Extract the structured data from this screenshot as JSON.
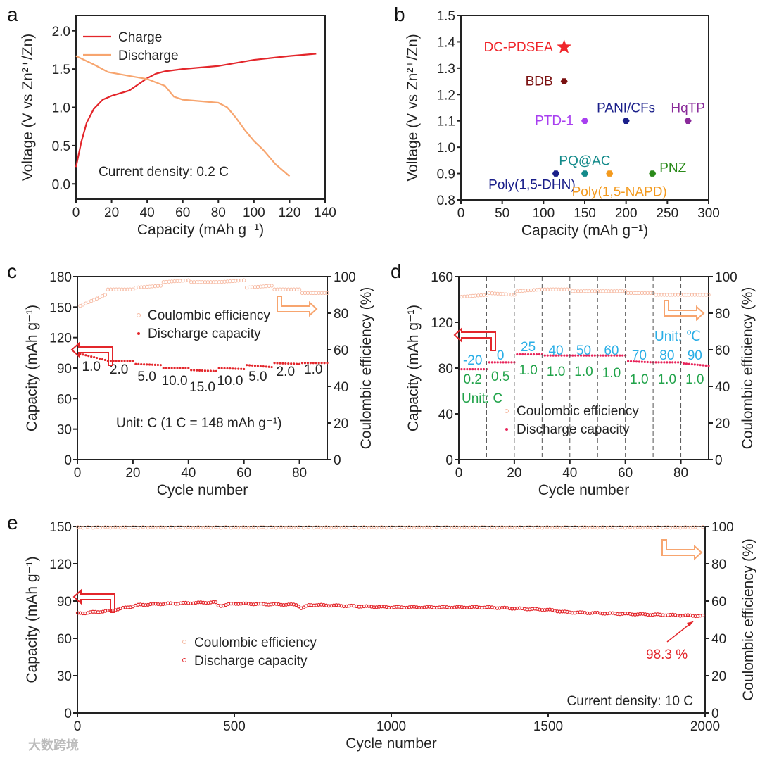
{
  "colors": {
    "charge": "#e3262b",
    "discharge": "#f7a56f",
    "cap": "#e3262b",
    "cap_d": "#e8245a",
    "ce": "#f6b8a0",
    "blue": "#29aee6",
    "green": "#21a34a"
  },
  "watermark": "大数跨境",
  "chart_data": [
    {
      "panel": "a",
      "type": "line",
      "xlabel": "Capacity (mAh g⁻¹)",
      "ylabel": "Voltage (V vs Zn²⁺/Zn)",
      "xlim": [
        0,
        140
      ],
      "ylim": [
        -0.2,
        2.2
      ],
      "xticks": [
        0,
        20,
        40,
        60,
        80,
        100,
        120,
        140
      ],
      "yticks": [
        0.0,
        0.5,
        1.0,
        1.5,
        2.0
      ],
      "annotation": "Current density: 0.2 C",
      "series": [
        {
          "name": "Charge",
          "color": "#e3262b",
          "points": [
            [
              0,
              0.22
            ],
            [
              3,
              0.55
            ],
            [
              6,
              0.8
            ],
            [
              10,
              0.98
            ],
            [
              15,
              1.1
            ],
            [
              20,
              1.15
            ],
            [
              30,
              1.22
            ],
            [
              35,
              1.3
            ],
            [
              40,
              1.38
            ],
            [
              45,
              1.44
            ],
            [
              50,
              1.47
            ],
            [
              60,
              1.5
            ],
            [
              80,
              1.54
            ],
            [
              100,
              1.62
            ],
            [
              120,
              1.67
            ],
            [
              135,
              1.7
            ]
          ]
        },
        {
          "name": "Discharge",
          "color": "#f7a56f",
          "points": [
            [
              0,
              1.67
            ],
            [
              10,
              1.56
            ],
            [
              18,
              1.46
            ],
            [
              30,
              1.41
            ],
            [
              40,
              1.37
            ],
            [
              50,
              1.28
            ],
            [
              55,
              1.14
            ],
            [
              60,
              1.1
            ],
            [
              80,
              1.06
            ],
            [
              85,
              1.0
            ],
            [
              90,
              0.86
            ],
            [
              95,
              0.7
            ],
            [
              100,
              0.56
            ],
            [
              105,
              0.45
            ],
            [
              112,
              0.26
            ],
            [
              120,
              0.1
            ]
          ]
        }
      ]
    },
    {
      "panel": "b",
      "type": "scatter",
      "xlabel": "Capacity (mAh g⁻¹)",
      "ylabel": "Voltage (V vs Zn²⁺/Zn)",
      "xlim": [
        0,
        300
      ],
      "ylim": [
        0.8,
        1.5
      ],
      "xticks": [
        0,
        50,
        100,
        150,
        200,
        250,
        300
      ],
      "yticks": [
        0.8,
        0.9,
        1.0,
        1.1,
        1.2,
        1.3,
        1.4,
        1.5
      ],
      "points": [
        {
          "label": "DC-PDSEA",
          "x": 125,
          "y": 1.38,
          "color": "#f0262b",
          "marker": "star",
          "lpos": "left"
        },
        {
          "label": "BDB",
          "x": 125,
          "y": 1.25,
          "color": "#7a1010",
          "marker": "hex",
          "lpos": "left"
        },
        {
          "label": "PTD-1",
          "x": 150,
          "y": 1.1,
          "color": "#a83ff0",
          "marker": "hex",
          "lpos": "left"
        },
        {
          "label": "PANI/CFs",
          "x": 200,
          "y": 1.1,
          "color": "#1a1f8a",
          "marker": "hex",
          "lpos": "above"
        },
        {
          "label": "HqTP",
          "x": 275,
          "y": 1.1,
          "color": "#8a2a9a",
          "marker": "hex",
          "lpos": "above"
        },
        {
          "label": "Poly(1,5-DHN)",
          "x": 115,
          "y": 0.9,
          "color": "#1a1f8a",
          "marker": "hex",
          "lpos": "belowleft"
        },
        {
          "label": "PQ@AC",
          "x": 150,
          "y": 0.9,
          "color": "#138a8a",
          "marker": "hex",
          "lpos": "above"
        },
        {
          "label": "Poly(1,5-NAPD)",
          "x": 180,
          "y": 0.9,
          "color": "#f39a1e",
          "marker": "hex",
          "lpos": "below"
        },
        {
          "label": "PNZ",
          "x": 232,
          "y": 0.9,
          "color": "#2a8a1a",
          "marker": "hex",
          "lpos": "right"
        }
      ]
    },
    {
      "panel": "c",
      "type": "scatter",
      "xlabel": "Cycle number",
      "ylabel": "Capacity (mAh g⁻¹)",
      "y2label": "Coulombic efficiency (%)",
      "xlim": [
        0,
        90
      ],
      "ylim": [
        0,
        180
      ],
      "y2lim": [
        0,
        100
      ],
      "xticks": [
        0,
        20,
        40,
        60,
        80
      ],
      "yticks": [
        0,
        30,
        60,
        90,
        120,
        150,
        180
      ],
      "y2ticks": [
        0,
        20,
        40,
        60,
        80,
        100
      ],
      "legend": [
        "Coulombic efficiency",
        "Discharge capacity"
      ],
      "annotation": "Unit: C (1 C = 148 mAh g⁻¹)",
      "rates": [
        "1.0",
        "2.0",
        "5.0",
        "10.0",
        "15.0",
        "10.0",
        "5.0",
        "2.0",
        "1.0"
      ],
      "capacity_start": [
        104,
        97,
        94,
        90,
        88,
        90,
        93,
        95,
        95
      ],
      "capacity_end": [
        98,
        97,
        93,
        90,
        87,
        89,
        91,
        94,
        95
      ],
      "ce_start": [
        84,
        93,
        94,
        97,
        97,
        97,
        94,
        93,
        91
      ],
      "ce_end": [
        90,
        93,
        95,
        98,
        97,
        98,
        95,
        93,
        91
      ]
    },
    {
      "panel": "d",
      "type": "scatter",
      "xlabel": "Cycle number",
      "ylabel": "Capacity (mAh g⁻¹)",
      "y2label": "Coulombic efficiency (%)",
      "xlim": [
        0,
        90
      ],
      "ylim": [
        0,
        160
      ],
      "y2lim": [
        0,
        100
      ],
      "xticks": [
        0,
        20,
        40,
        60,
        80
      ],
      "yticks": [
        0,
        40,
        80,
        120,
        160
      ],
      "y2ticks": [
        0,
        20,
        40,
        60,
        80,
        100
      ],
      "legend": [
        "Coulombic efficiency",
        "Discharge capacity"
      ],
      "unit_temp": "Unit: ℃",
      "unit_rate": "Unit: C",
      "temps": [
        "-20",
        "0",
        "25",
        "40",
        "50",
        "60",
        "70",
        "80",
        "90"
      ],
      "rates": [
        "0.2",
        "0.5",
        "1.0",
        "1.0",
        "1.0",
        "1.0",
        "1.0",
        "1.0",
        "1.0"
      ],
      "capacity_start": [
        79,
        85,
        92,
        91,
        91,
        91,
        86,
        85,
        84
      ],
      "capacity_end": [
        79,
        85,
        92,
        91,
        91,
        91,
        85,
        85,
        82
      ],
      "ce_start": [
        89,
        91,
        92,
        93,
        92,
        92,
        91,
        90,
        90
      ],
      "ce_end": [
        90,
        90,
        93,
        93,
        92,
        92,
        91,
        90,
        90
      ]
    },
    {
      "panel": "e",
      "type": "scatter",
      "xlabel": "Cycle number",
      "ylabel": "Capacity (mAh g⁻¹)",
      "y2label": "Coulombic efficiency (%)",
      "xlim": [
        0,
        2000
      ],
      "ylim": [
        0,
        150
      ],
      "y2lim": [
        0,
        100
      ],
      "xticks": [
        0,
        500,
        1000,
        1500,
        2000
      ],
      "yticks": [
        0,
        30,
        60,
        90,
        120,
        150
      ],
      "y2ticks": [
        0,
        20,
        40,
        60,
        80,
        100
      ],
      "legend": [
        "Coulombic efficiency",
        "Discharge capacity"
      ],
      "annotation": "Current density: 10 C",
      "retention": "98.3 %",
      "capacity_points": [
        [
          0,
          80
        ],
        [
          100,
          82
        ],
        [
          200,
          87
        ],
        [
          300,
          88
        ],
        [
          440,
          89
        ],
        [
          450,
          86
        ],
        [
          500,
          88
        ],
        [
          700,
          87
        ],
        [
          715,
          84
        ],
        [
          740,
          87
        ],
        [
          1000,
          85
        ],
        [
          1300,
          85
        ],
        [
          1500,
          83
        ],
        [
          1560,
          81
        ],
        [
          1700,
          80
        ],
        [
          2000,
          78
        ]
      ],
      "ce": 99.5
    }
  ]
}
